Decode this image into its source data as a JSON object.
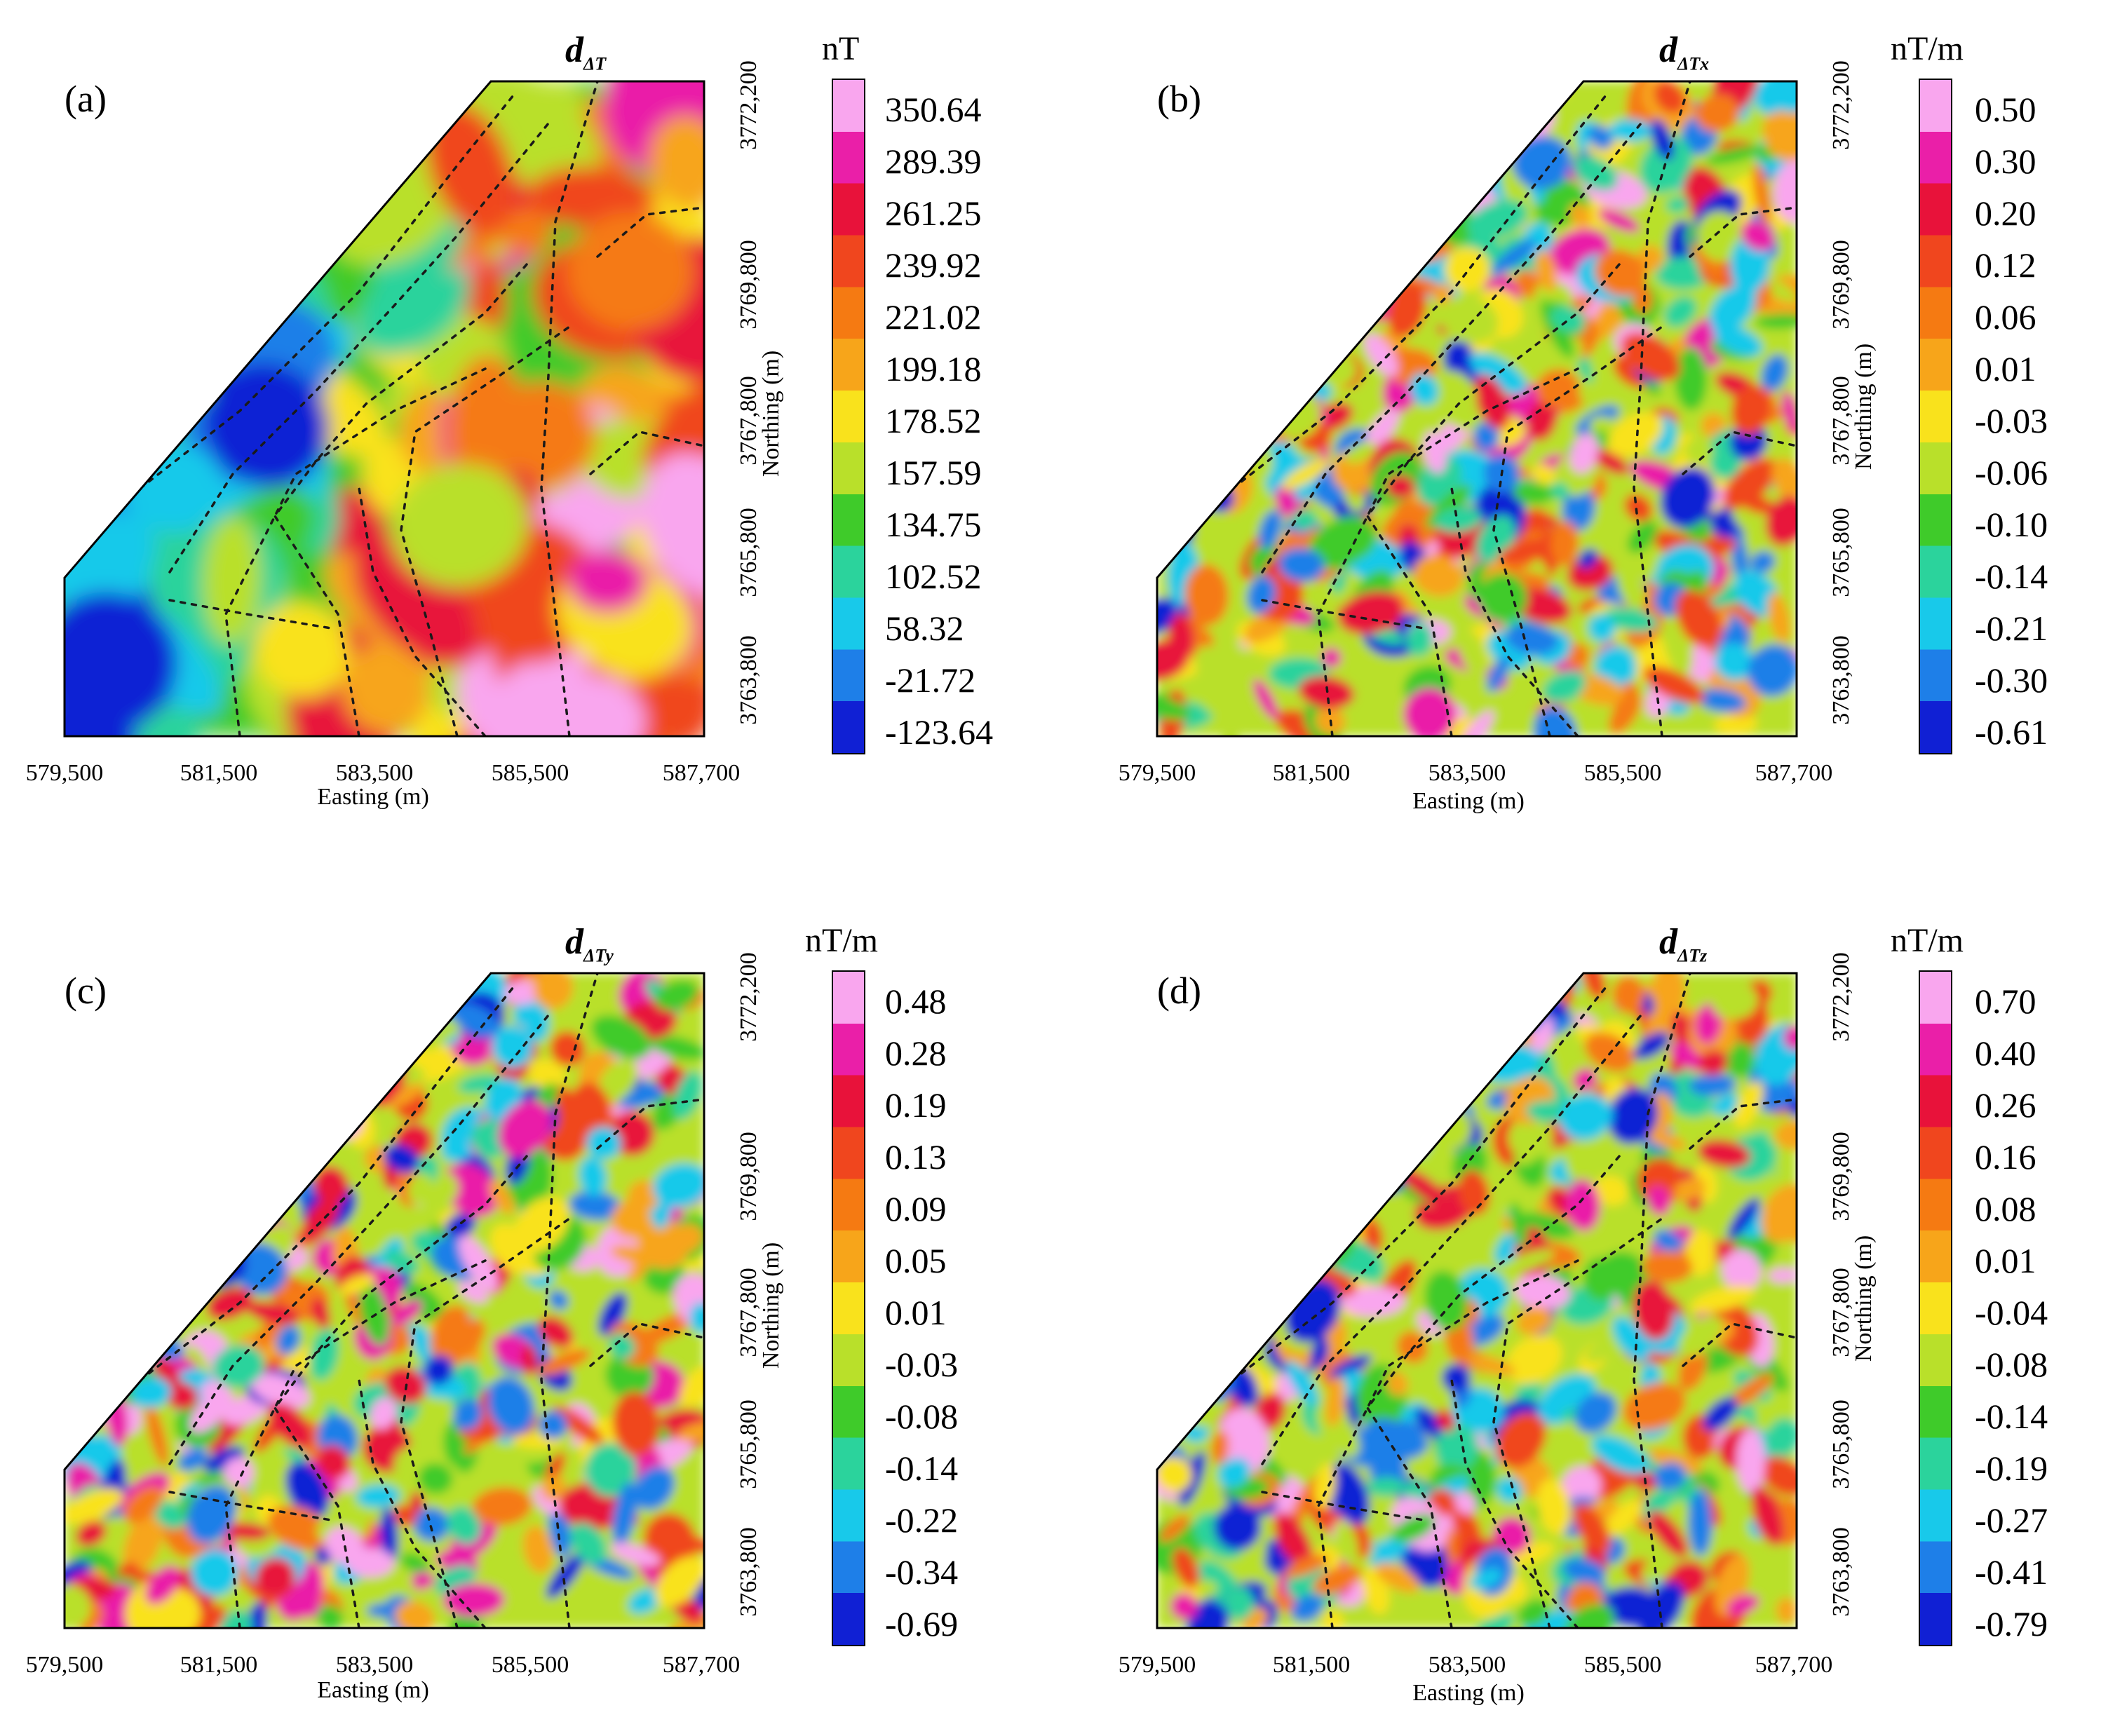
{
  "panels": [
    {
      "label": "(a)",
      "title_main": "d",
      "title_sub": "ΔT",
      "unit": "nT",
      "x_ticks": [
        "579,500",
        "581,500",
        "583,500",
        "585,500",
        "587,700"
      ],
      "x_title": "Easting (m)",
      "y_ticks": [
        "3763,800",
        "3765,800",
        "3767,800",
        "3769,800",
        "3772,200"
      ],
      "y_title": "Northing (m)",
      "colorbar": [
        "350.64",
        "289.39",
        "261.25",
        "239.92",
        "221.02",
        "199.18",
        "178.52",
        "157.59",
        "134.75",
        "102.52",
        "58.32",
        "-21.72",
        "-123.64"
      ]
    },
    {
      "label": "(b)",
      "title_main": "d",
      "title_sub": "ΔTx",
      "unit": "nT/m",
      "x_ticks": [
        "579,500",
        "581,500",
        "583,500",
        "585,500",
        "587,700"
      ],
      "x_title": "Easting (m)",
      "y_ticks": [
        "3763,800",
        "3765,800",
        "3767,800",
        "3769,800",
        "3772,200"
      ],
      "y_title": "Northing (m)",
      "colorbar": [
        "0.50",
        "0.30",
        "0.20",
        "0.12",
        "0.06",
        "0.01",
        "-0.03",
        "-0.06",
        "-0.10",
        "-0.14",
        "-0.21",
        "-0.30",
        "-0.61"
      ]
    },
    {
      "label": "(c)",
      "title_main": "d",
      "title_sub": "ΔTy",
      "unit": "nT/m",
      "x_ticks": [
        "579,500",
        "581,500",
        "583,500",
        "585,500",
        "587,700"
      ],
      "x_title": "Easting (m)",
      "y_ticks": [
        "3763,800",
        "3765,800",
        "3767,800",
        "3769,800",
        "3772,200"
      ],
      "y_title": "Northing (m)",
      "colorbar": [
        "0.48",
        "0.28",
        "0.19",
        "0.13",
        "0.09",
        "0.05",
        "0.01",
        "-0.03",
        "-0.08",
        "-0.14",
        "-0.22",
        "-0.34",
        "-0.69"
      ]
    },
    {
      "label": "(d)",
      "title_main": "d",
      "title_sub": "ΔTz",
      "unit": "nT/m",
      "x_ticks": [
        "579,500",
        "581,500",
        "583,500",
        "585,500",
        "587,700"
      ],
      "x_title": "Easting (m)",
      "y_ticks": [
        "3763,800",
        "3765,800",
        "3767,800",
        "3769,800",
        "3772,200"
      ],
      "y_title": "Northing (m)",
      "colorbar": [
        "0.70",
        "0.40",
        "0.26",
        "0.16",
        "0.08",
        "0.01",
        "-0.04",
        "-0.08",
        "-0.14",
        "-0.19",
        "-0.27",
        "-0.41",
        "-0.79"
      ]
    }
  ],
  "colors": {
    "palette": [
      "#f9a6ee",
      "#ea1fa8",
      "#e8123a",
      "#f0461e",
      "#f57a12",
      "#f7a51a",
      "#f9e21c",
      "#b9e02a",
      "#3fcb2a",
      "#2bd39c",
      "#18c9ea",
      "#1e7fe8",
      "#1020d4"
    ],
    "fault_line": "#1a1a1a",
    "outline": "#000000"
  }
}
